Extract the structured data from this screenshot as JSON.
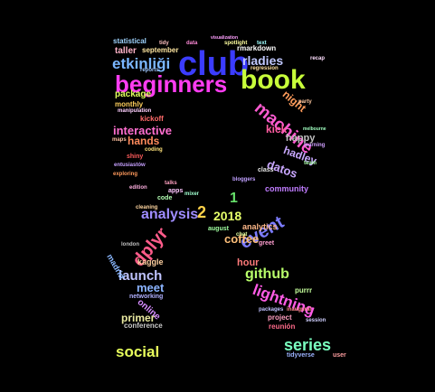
{
  "wordcloud": {
    "words": [
      {
        "text": "club",
        "color": "#3b3cff"
      },
      {
        "text": "book",
        "color": "#c8ff3a"
      },
      {
        "text": "beginners",
        "color": "#ff3df2"
      },
      {
        "text": "etkinliği",
        "color": "#7ab6ff"
      },
      {
        "text": "rladies",
        "color": "#c0c8ff"
      },
      {
        "text": "machine",
        "color": "#ff5bd1"
      },
      {
        "text": "night",
        "color": "#ff9b5a"
      },
      {
        "text": "kick",
        "color": "#ff5ca1"
      },
      {
        "text": "happy",
        "color": "#bfbfbf"
      },
      {
        "text": "hadley",
        "color": "#c8a8ff"
      },
      {
        "text": "datos",
        "color": "#c9a7ff"
      },
      {
        "text": "interactive",
        "color": "#ff6ecf"
      },
      {
        "text": "hands",
        "color": "#ff8a5c"
      },
      {
        "text": "package",
        "color": "#e0ff5c"
      },
      {
        "text": "monthly",
        "color": "#ffd05c"
      },
      {
        "text": "taller",
        "color": "#ffb3c8"
      },
      {
        "text": "september",
        "color": "#ffe6a0"
      },
      {
        "text": "statistical",
        "color": "#9fd4ff"
      },
      {
        "text": "rmarkdown",
        "color": "#ffffff"
      },
      {
        "text": "kickoff",
        "color": "#ff6a6a"
      },
      {
        "text": "analysis",
        "color": "#9f8cff"
      },
      {
        "text": "2018",
        "color": "#e6ff6a"
      },
      {
        "text": "2",
        "color": "#ffd34a"
      },
      {
        "text": "1",
        "color": "#66e06a"
      },
      {
        "text": "event",
        "color": "#7c7cff"
      },
      {
        "text": "community",
        "color": "#c07cff"
      },
      {
        "text": "analytics",
        "color": "#ffb98a"
      },
      {
        "text": "dplyr",
        "color": "#ff5b8a"
      },
      {
        "text": "coffee",
        "color": "#ffc07a"
      },
      {
        "text": "hour",
        "color": "#ff7a7a"
      },
      {
        "text": "launch",
        "color": "#c0c4ff"
      },
      {
        "text": "meet",
        "color": "#8bb4ff"
      },
      {
        "text": "github",
        "color": "#b8ff6a"
      },
      {
        "text": "lightning",
        "color": "#ff5ce6"
      },
      {
        "text": "primer",
        "color": "#e8e8a0"
      },
      {
        "text": "online",
        "color": "#d68cff"
      },
      {
        "text": "madrid",
        "color": "#8ab8ff"
      },
      {
        "text": "kaggle",
        "color": "#ffd0a0"
      },
      {
        "text": "conference",
        "color": "#c8c8c8"
      },
      {
        "text": "networking",
        "color": "#b0b0ff"
      },
      {
        "text": "social",
        "color": "#e8ff5c"
      },
      {
        "text": "series",
        "color": "#7affc0"
      },
      {
        "text": "purrr",
        "color": "#c6ff9c"
      },
      {
        "text": "project",
        "color": "#ff9ec0"
      },
      {
        "text": "reunión",
        "color": "#ff6a8a"
      },
      {
        "text": "session",
        "color": "#d0d0ff"
      },
      {
        "text": "tidyverse",
        "color": "#9cb4ff"
      },
      {
        "text": "user",
        "color": "#ff9ea0"
      },
      {
        "text": "august",
        "color": "#a0ffa0"
      },
      {
        "text": "greet",
        "color": "#ff9ed0"
      },
      {
        "text": "class",
        "color": "#e6e6e6"
      },
      {
        "text": "apps",
        "color": "#ffc6ff"
      },
      {
        "text": "code",
        "color": "#b4ffb4"
      },
      {
        "text": "coding",
        "color": "#ffe27a"
      },
      {
        "text": "exploring",
        "color": "#ff9a5c"
      },
      {
        "text": "entusiastów",
        "color": "#c6a0ff"
      },
      {
        "text": "maps",
        "color": "#ffc0a0"
      },
      {
        "text": "manipulation",
        "color": "#ffd0ff"
      },
      {
        "text": "reports",
        "color": "#a0c8ff"
      },
      {
        "text": "regression",
        "color": "#ffe0a0"
      },
      {
        "text": "inaugural",
        "color": "#ff8a8a"
      },
      {
        "text": "packages",
        "color": "#c0c0ff"
      },
      {
        "text": "visualization",
        "color": "#ffa0ff"
      },
      {
        "text": "spotlight",
        "color": "#ffffa0"
      },
      {
        "text": "text",
        "color": "#a0ffff"
      },
      {
        "text": "tidy",
        "color": "#ffc0c0"
      },
      {
        "text": "data",
        "color": "#ff8ad8"
      },
      {
        "text": "melbourne",
        "color": "#a0ffc0"
      },
      {
        "text": "bloggers",
        "color": "#c0a0ff"
      },
      {
        "text": "cleaning",
        "color": "#ffd6a0"
      },
      {
        "text": "london",
        "color": "#c0c0c0"
      },
      {
        "text": "talks",
        "color": "#ffa0c0"
      },
      {
        "text": "chat",
        "color": "#e0ffa0"
      },
      {
        "text": "mixer",
        "color": "#a0ffd0"
      },
      {
        "text": "edition",
        "color": "#ffb0e0"
      },
      {
        "text": "shiny",
        "color": "#ff5c5c"
      },
      {
        "text": "recap",
        "color": "#ffe0ff"
      },
      {
        "text": "team",
        "color": "#b0ffb0"
      },
      {
        "text": "party",
        "color": "#ffc8a0"
      },
      {
        "text": "learning",
        "color": "#d0a0ff"
      }
    ]
  }
}
